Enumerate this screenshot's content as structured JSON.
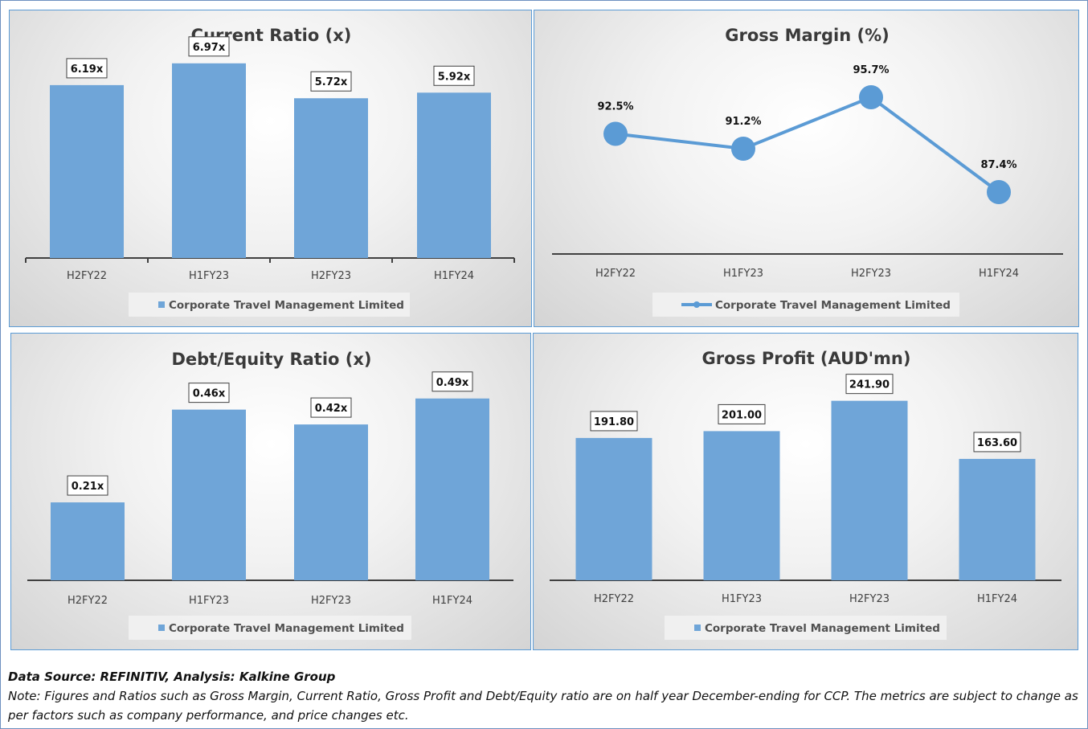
{
  "chart_data": [
    {
      "id": "current-ratio",
      "type": "bar",
      "title": "Current Ratio (x)",
      "categories": [
        "H2FY22",
        "H1FY23",
        "H2FY23",
        "H1FY24"
      ],
      "series": [
        {
          "name": "Corporate Travel Management Limited",
          "values": [
            6.19,
            6.97,
            5.72,
            5.92
          ]
        }
      ],
      "data_labels": [
        "6.19x",
        "6.97x",
        "5.72x",
        "5.92x"
      ],
      "ylim": [
        0,
        8
      ],
      "color": "#6fa5d8",
      "legend": "bottom",
      "grid": false
    },
    {
      "id": "gross-margin",
      "type": "line",
      "title": "Gross Margin (%)",
      "categories": [
        "H2FY22",
        "H1FY23",
        "H2FY23",
        "H1FY24"
      ],
      "series": [
        {
          "name": "Corporate Travel Management Limited",
          "values": [
            92.5,
            91.2,
            95.7,
            87.4
          ]
        }
      ],
      "data_labels": [
        "92.5%",
        "91.2%",
        "95.7%",
        "87.4%"
      ],
      "ylim": [
        78,
        100
      ],
      "color": "#5b9bd5",
      "legend": "bottom",
      "grid": false
    },
    {
      "id": "debt-equity",
      "type": "bar",
      "title": "Debt/Equity Ratio (x)",
      "categories": [
        "H2FY22",
        "H1FY23",
        "H2FY23",
        "H1FY24"
      ],
      "series": [
        {
          "name": "Corporate Travel Management Limited",
          "values": [
            0.21,
            0.46,
            0.42,
            0.49
          ]
        }
      ],
      "data_labels": [
        "0.21x",
        "0.46x",
        "0.42x",
        "0.49x"
      ],
      "ylim": [
        0,
        0.6
      ],
      "color": "#6fa5d8",
      "legend": "bottom",
      "grid": false
    },
    {
      "id": "gross-profit",
      "type": "bar",
      "title": "Gross Profit (AUD'mn)",
      "categories": [
        "H2FY22",
        "H1FY23",
        "H2FY23",
        "H1FY24"
      ],
      "series": [
        {
          "name": "Corporate Travel Management Limited",
          "values": [
            191.8,
            201.0,
            241.9,
            163.6
          ]
        }
      ],
      "data_labels": [
        "191.80",
        "201.00",
        "241.90",
        "163.60"
      ],
      "ylim": [
        0,
        300
      ],
      "color": "#6fa5d8",
      "legend": "bottom",
      "grid": false
    }
  ],
  "footer": {
    "source": "Data Source: REFINITIV, Analysis: Kalkine Group",
    "note": "Note: Figures and Ratios such as Gross Margin, Current Ratio, Gross Profit and Debt/Equity ratio are on half year December-ending for CCP. The metrics are subject to change as per factors such as company performance, and price changes etc."
  }
}
